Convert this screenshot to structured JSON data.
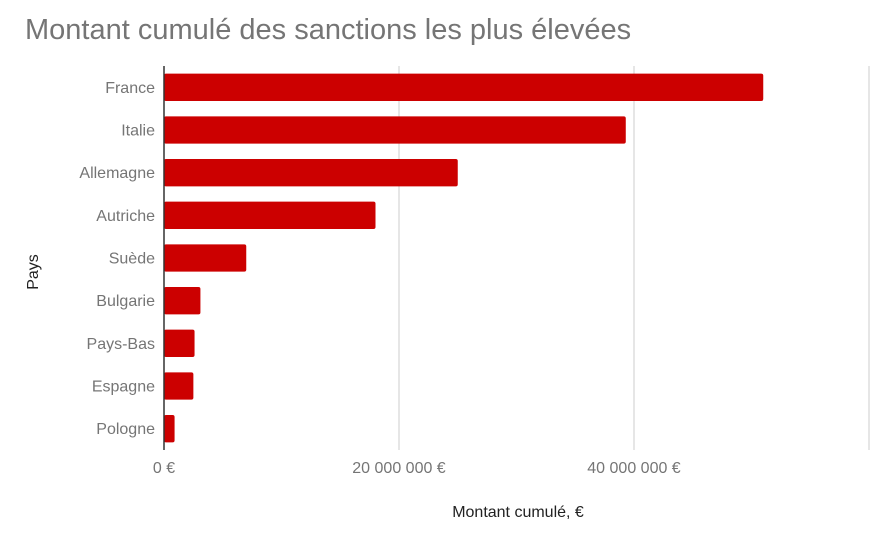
{
  "chart_data": {
    "type": "bar",
    "orientation": "horizontal",
    "title": "Montant cumulé des sanctions les plus élevées",
    "xlabel": "Montant cumulé, €",
    "ylabel": "Pays",
    "categories": [
      "France",
      "Italie",
      "Allemagne",
      "Autriche",
      "Suède",
      "Bulgarie",
      "Pays-Bas",
      "Espagne",
      "Pologne"
    ],
    "values": [
      51000000,
      39300000,
      25000000,
      18000000,
      7000000,
      3100000,
      2600000,
      2500000,
      900000
    ],
    "xlim": [
      0,
      60000000
    ],
    "xticks": [
      0,
      20000000,
      40000000,
      60000000
    ],
    "xtick_labels": [
      "0 €",
      "20 000 000 €",
      "40 000 000 €",
      ""
    ],
    "grid": true,
    "bar_color": "#cc0000"
  }
}
